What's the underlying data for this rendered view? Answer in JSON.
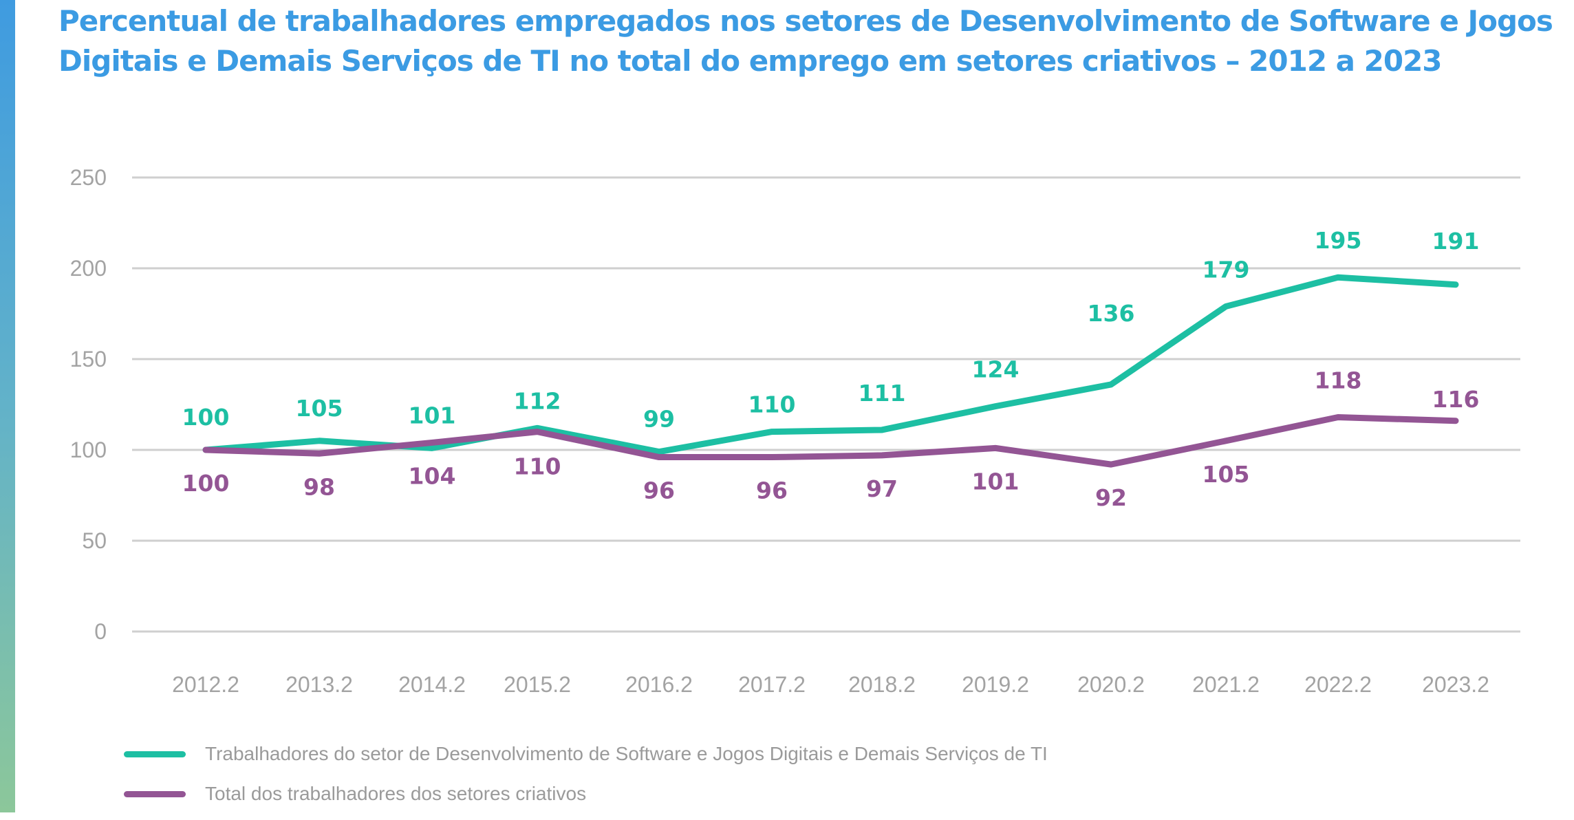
{
  "title": "Percentual de trabalhadores empregados nos setores de Desenvolvimento de Software e Jogos Digitais e Demais Serviços de TI no total do emprego em setores criativos – 2012 a 2023",
  "chart_data": {
    "type": "line",
    "title": "Percentual de trabalhadores empregados nos setores de Desenvolvimento de Software e Jogos Digitais e Demais Serviços de TI no total do emprego em setores criativos – 2012 a 2023",
    "categories": [
      "2012.2",
      "2013.2",
      "2014.2",
      "2015.2",
      "2016.2",
      "2017.2",
      "2018.2",
      "2019.2",
      "2020.2",
      "2021.2",
      "2022.2",
      "2023.2"
    ],
    "ylim": [
      0,
      250
    ],
    "yticks": [
      0,
      50,
      100,
      150,
      200,
      250
    ],
    "grid": true,
    "legend_position": "bottom",
    "series": [
      {
        "name": "Trabalhadores do setor de Desenvolvimento de Software e Jogos Digitais e Demais Serviços de TI",
        "color": "#1dbfa3",
        "values": [
          100,
          105,
          101,
          112,
          99,
          110,
          111,
          124,
          136,
          179,
          195,
          191
        ],
        "label_values": [
          "100",
          "105",
          "101",
          "112",
          "99",
          "110",
          "111",
          "124",
          "136",
          "179",
          "195",
          "191"
        ]
      },
      {
        "name": "Total dos trabalhadores dos setores criativos",
        "color": "#935594",
        "values": [
          100,
          98,
          104,
          110,
          96,
          96,
          97,
          101,
          92,
          105,
          118,
          116
        ],
        "label_values": [
          "100",
          "98",
          "104",
          "110",
          "96",
          "96",
          "97",
          "101",
          "92",
          "105",
          "118",
          "116"
        ]
      }
    ]
  },
  "colors": {
    "title": "#3b9be3",
    "axis_text": "#a3a3a3",
    "grid": "#cfcfcf"
  }
}
